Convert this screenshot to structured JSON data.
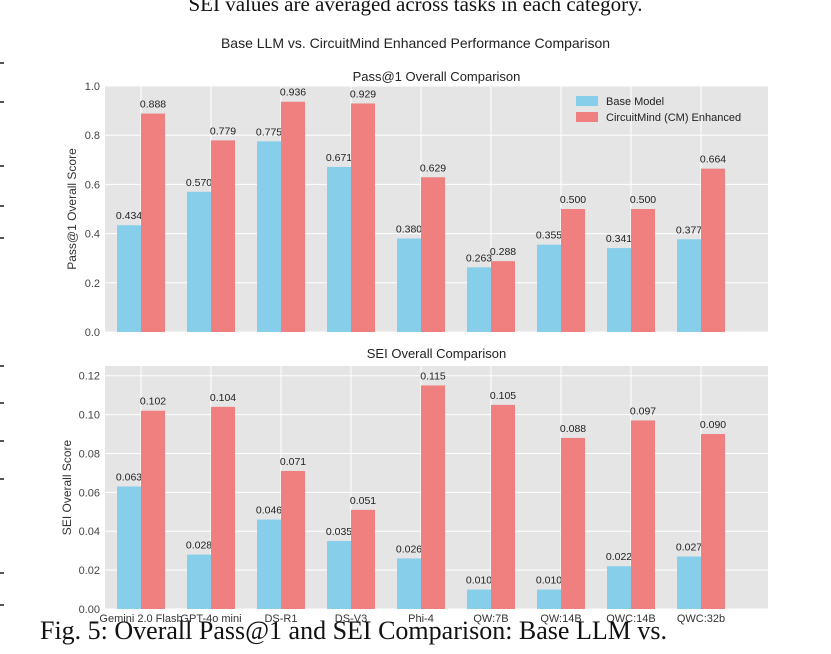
{
  "top_caption": "SEI values are averaged across tasks in each category.",
  "bottom_caption": "Fig. 5: Overall Pass@1 and SEI Comparison: Base LLM vs.",
  "main_title": "Base LLM vs. CircuitMind Enhanced Performance Comparison",
  "colors": {
    "base": "#87ceeb",
    "enhanced": "#f08080",
    "panel_bg": "#e5e5e5",
    "grid": "#ffffff"
  },
  "chart_data": [
    {
      "type": "bar",
      "title": "Pass@1 Overall Comparison",
      "xlabel": "",
      "ylabel": "Pass@1 Overall Score",
      "ylim": [
        0,
        1.0
      ],
      "yticks": [
        "0.0",
        "0.2",
        "0.4",
        "0.6",
        "0.8",
        "1.0"
      ],
      "grid": true,
      "legend": {
        "placement": "top-right",
        "entries": [
          "Base Model",
          "CircuitMind (CM) Enhanced"
        ]
      },
      "categories": [
        "Gemini 2.0 Flash",
        "GPT-4o mini",
        "DS-R1",
        "DS-V3",
        "Phi-4",
        "QW:7B",
        "QW:14B",
        "QWC:14B",
        "QWC:32b"
      ],
      "show_category_labels": false,
      "series": [
        {
          "name": "Base Model",
          "values": [
            0.434,
            0.57,
            0.775,
            0.671,
            0.38,
            0.263,
            0.355,
            0.341,
            0.377
          ],
          "labels": [
            "0.434",
            "0.570",
            "0.775",
            "0.671",
            "0.380",
            "0.263",
            "0.355",
            "0.341",
            "0.377"
          ]
        },
        {
          "name": "CircuitMind (CM) Enhanced",
          "values": [
            0.888,
            0.779,
            0.936,
            0.929,
            0.629,
            0.288,
            0.5,
            0.5,
            0.664
          ],
          "labels": [
            "0.888",
            "0.779",
            "0.936",
            "0.929",
            "0.629",
            "0.288",
            "0.500",
            "0.500",
            "0.664"
          ]
        }
      ]
    },
    {
      "type": "bar",
      "title": "SEI Overall Comparison",
      "xlabel": "",
      "ylabel": "SEI Overall Score",
      "ylim": [
        0,
        0.125
      ],
      "yticks": [
        "0.00",
        "0.02",
        "0.04",
        "0.06",
        "0.08",
        "0.10",
        "0.12"
      ],
      "grid": true,
      "categories": [
        "Gemini 2.0 Flash",
        "GPT-4o mini",
        "DS-R1",
        "DS-V3",
        "Phi-4",
        "QW:7B",
        "QW:14B",
        "QWC:14B",
        "QWC:32b"
      ],
      "show_category_labels": true,
      "series": [
        {
          "name": "Base Model",
          "values": [
            0.063,
            0.028,
            0.046,
            0.035,
            0.026,
            0.01,
            0.01,
            0.022,
            0.027
          ],
          "labels": [
            "0.063",
            "0.028",
            "0.046",
            "0.035",
            "0.026",
            "0.010",
            "0.010",
            "0.022",
            "0.027"
          ]
        },
        {
          "name": "CircuitMind (CM) Enhanced",
          "values": [
            0.102,
            0.104,
            0.071,
            0.051,
            0.115,
            0.105,
            0.088,
            0.097,
            0.09
          ],
          "labels": [
            "0.102",
            "0.104",
            "0.071",
            "0.051",
            "0.115",
            "0.105",
            "0.088",
            "0.097",
            "0.090"
          ]
        }
      ]
    }
  ]
}
